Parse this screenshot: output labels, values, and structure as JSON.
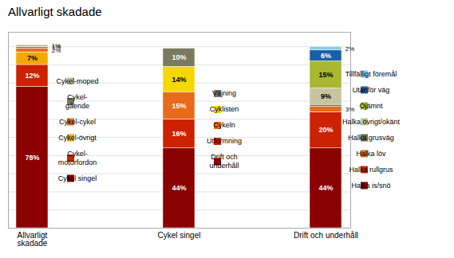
{
  "chart_data": {
    "type": "bar",
    "title": "Allvarligt skadade",
    "stacked": true,
    "data_labels": true,
    "grid": true,
    "tick_labels": "x",
    "ylim": [
      0,
      108
    ],
    "yticks": [
      10,
      20,
      30,
      40,
      50,
      60,
      70,
      80,
      90,
      100
    ],
    "categories": [
      "Allvarligt\nskadade",
      "Cykel singel",
      "Drift och underhåll"
    ],
    "series": [
      {
        "name": "Cykel singel",
        "color": "#8B0000",
        "values": [
          78,
          null,
          null
        ],
        "value_labels": [
          "78%",
          null,
          null
        ]
      },
      {
        "name": "Cykel-\nmotorfordon",
        "color": "#CC2200",
        "values": [
          12,
          null,
          null
        ],
        "value_labels": [
          "12%",
          null,
          null
        ]
      },
      {
        "name": "Cykel-övrigt",
        "color": "#F5A800",
        "values": [
          7,
          null,
          null
        ],
        "value_labels": [
          "7%",
          null,
          null
        ]
      },
      {
        "name": "Cykel-cykel",
        "color": "#E86A1A",
        "values": [
          2,
          null,
          null
        ],
        "value_labels": [
          "2%",
          null,
          null
        ]
      },
      {
        "name": "Cykel-\ngående",
        "color": "#7A7A62",
        "values": [
          1,
          null,
          null
        ],
        "value_labels": [
          "1%",
          null,
          null
        ]
      },
      {
        "name": "Cykel-moped",
        "color": "#C8C4A0",
        "values": [
          1,
          null,
          null
        ],
        "value_labels": [
          "1%",
          null,
          null
        ]
      },
      {
        "name": "Drift och\nunderhåll",
        "color": "#8B0000",
        "values": [
          null,
          44,
          null
        ],
        "value_labels": [
          null,
          "44%",
          null
        ]
      },
      {
        "name": "Utformning",
        "color": "#CC2200",
        "values": [
          null,
          16,
          null
        ],
        "value_labels": [
          null,
          "16%",
          null
        ]
      },
      {
        "name": "Cykeln",
        "color": "#E86A1A",
        "values": [
          null,
          15,
          null
        ],
        "value_labels": [
          null,
          "15%",
          null
        ]
      },
      {
        "name": "Cyklisten",
        "color": "#F5D800",
        "values": [
          null,
          14,
          null
        ],
        "value_labels": [
          null,
          "14%",
          null
        ]
      },
      {
        "name": "Väjning",
        "color": "#7A7A62",
        "values": [
          null,
          10,
          null
        ],
        "value_labels": [
          null,
          "10%",
          null
        ]
      },
      {
        "name": "Halka is/snö",
        "color": "#8B0000",
        "values": [
          null,
          null,
          44
        ],
        "value_labels": [
          null,
          null,
          "44%"
        ]
      },
      {
        "name": "Halka rullgrus",
        "color": "#CC2200",
        "values": [
          null,
          null,
          20
        ],
        "value_labels": [
          null,
          null,
          "20%"
        ]
      },
      {
        "name": "Halka löv",
        "color": "#E86A1A",
        "values": [
          null,
          null,
          3
        ],
        "value_labels": [
          null,
          null,
          "3%"
        ]
      },
      {
        "name": "Halka grusväg",
        "color": "#6A6A55",
        "values": [
          null,
          null,
          1
        ],
        "value_labels": [
          null,
          null,
          null
        ]
      },
      {
        "name": "Halka övrigt/okänt",
        "color": "#C8C4A0",
        "values": [
          null,
          null,
          9
        ],
        "value_labels": [
          null,
          null,
          "9%"
        ]
      },
      {
        "name": "Ojämnt",
        "color": "#A8B830",
        "values": [
          null,
          null,
          15
        ],
        "value_labels": [
          null,
          null,
          "15%"
        ]
      },
      {
        "name": "Utanför väg",
        "color": "#1A5FA8",
        "values": [
          null,
          null,
          6
        ],
        "value_labels": [
          null,
          null,
          "6%"
        ]
      },
      {
        "name": "Tillfälligt föremål",
        "color": "#88CCEE",
        "values": [
          null,
          null,
          2
        ],
        "value_labels": [
          null,
          null,
          "2%"
        ]
      }
    ]
  }
}
